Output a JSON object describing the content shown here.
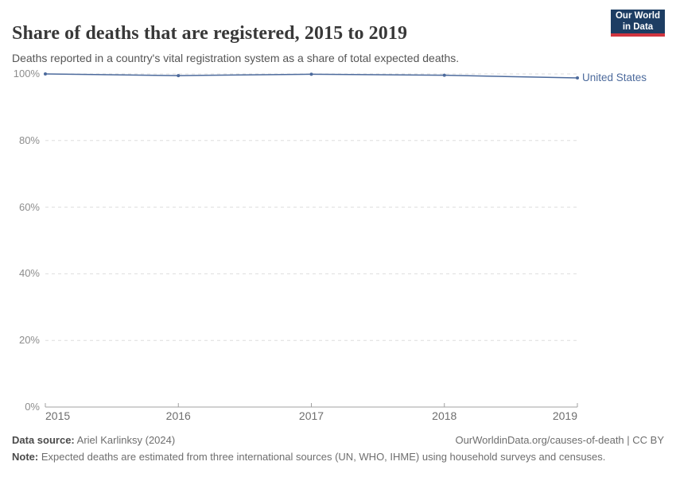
{
  "header": {
    "title": "Share of deaths that are registered, 2015 to 2019",
    "subtitle": "Deaths reported in a country's vital registration system as a share of total expected deaths.",
    "logo": {
      "line1": "Our World",
      "line2": "in Data",
      "bg_color": "#1d3d63",
      "accent_color": "#d0353f"
    }
  },
  "chart_data": {
    "type": "line",
    "title": "Share of deaths that are registered, 2015 to 2019",
    "x": [
      2015,
      2016,
      2017,
      2018,
      2019
    ],
    "series": [
      {
        "name": "United States",
        "color": "#4c6a9c",
        "values": [
          100,
          99.5,
          99.9,
          99.6,
          98.8
        ]
      }
    ],
    "ylim": [
      0,
      100
    ],
    "yticks": [
      0,
      20,
      40,
      60,
      80,
      100
    ],
    "ytick_suffix": "%",
    "xticks": [
      2015,
      2016,
      2017,
      2018,
      2019
    ],
    "grid": "horizontal-dashed",
    "grid_color": "#dedede",
    "axis_color": "#a0a0a0",
    "legend_position": "end-of-line"
  },
  "footer": {
    "source_label": "Data source:",
    "source_value": " Ariel Karlinksy (2024)",
    "link": "OurWorldinData.org/causes-of-death | CC BY",
    "note_label": "Note:",
    "note_value": " Expected deaths are estimated from three international sources (UN, WHO, IHME) using household surveys and censuses."
  }
}
